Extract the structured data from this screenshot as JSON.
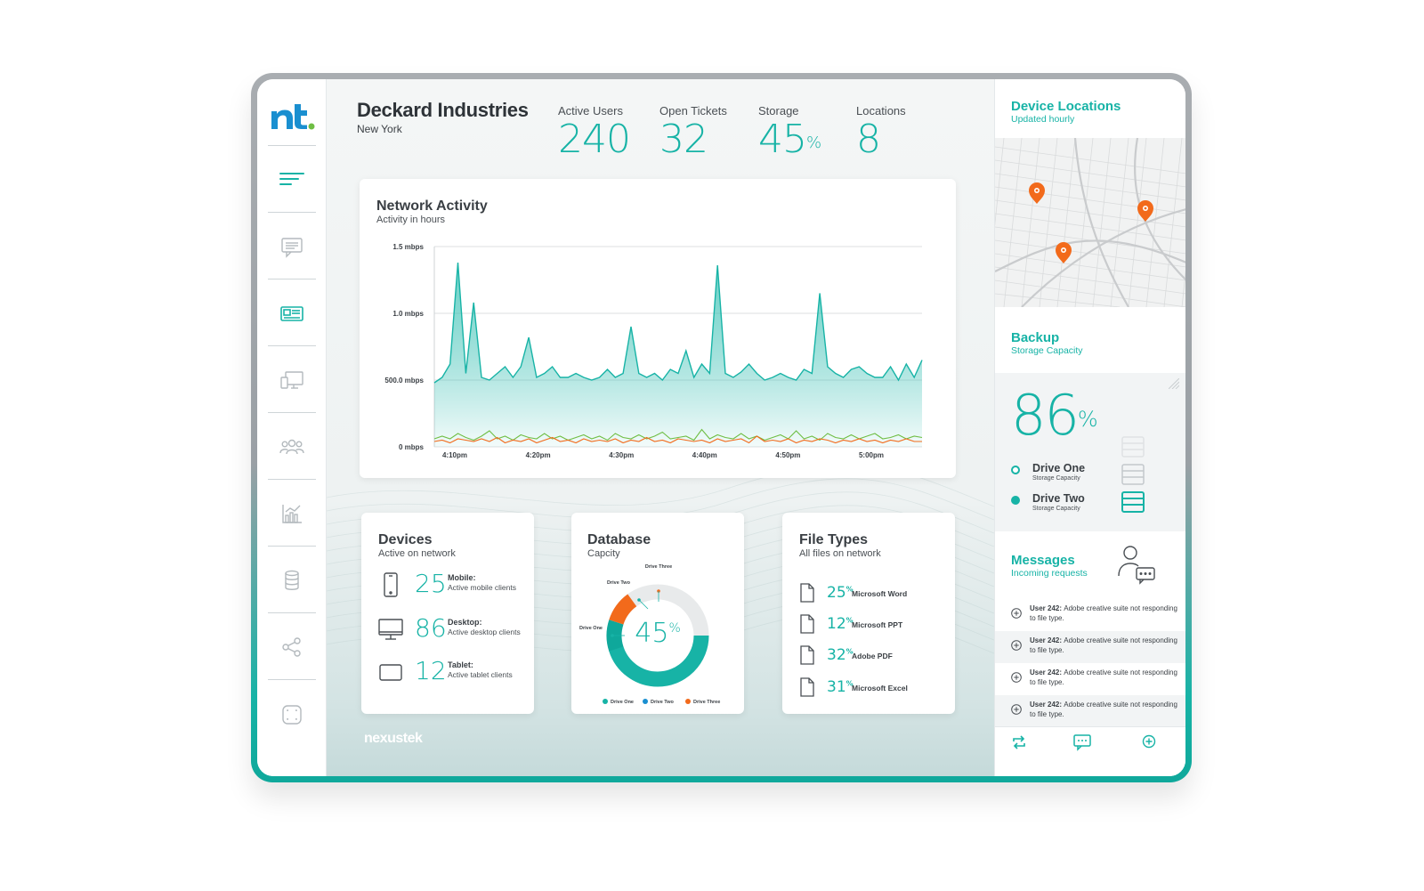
{
  "brand": {
    "logo_text": "nt.",
    "footer_brand": "nexustek"
  },
  "sidebar": {
    "items": [
      {
        "icon": "menu-icon"
      },
      {
        "icon": "chat-icon"
      },
      {
        "icon": "news-icon"
      },
      {
        "icon": "devices-icon"
      },
      {
        "icon": "users-icon"
      },
      {
        "icon": "chart-icon"
      },
      {
        "icon": "database-icon"
      },
      {
        "icon": "share-icon"
      },
      {
        "icon": "scan-icon"
      }
    ]
  },
  "header": {
    "company": "Deckard Industries",
    "city": "New York",
    "stats": [
      {
        "label": "Active Users",
        "value": "240",
        "suffix": ""
      },
      {
        "label": "Open Tickets",
        "value": "32",
        "suffix": ""
      },
      {
        "label": "Storage",
        "value": "45",
        "suffix": "%"
      },
      {
        "label": "Locations",
        "value": "8",
        "suffix": ""
      }
    ]
  },
  "network": {
    "title": "Network Activity",
    "subtitle": "Activity in hours"
  },
  "chart_data": {
    "type": "area",
    "title": "Network Activity",
    "subtitle": "Activity in hours",
    "xlabel": "",
    "ylabel": "",
    "y_ticks": [
      "0 mbps",
      "500.0 mbps",
      "1.0 mbps",
      "1.5 mbps"
    ],
    "ylim": [
      0,
      1.5
    ],
    "x_ticks": [
      "4:10pm",
      "4:20pm",
      "4:30pm",
      "4:40pm",
      "4:50pm",
      "5:00pm"
    ],
    "grid": true,
    "series": [
      {
        "color": "#17b3a6",
        "values": [
          0.48,
          0.52,
          0.62,
          1.38,
          0.55,
          1.08,
          0.52,
          0.5,
          0.55,
          0.6,
          0.52,
          0.6,
          0.82,
          0.52,
          0.55,
          0.6,
          0.52,
          0.52,
          0.55,
          0.52,
          0.5,
          0.52,
          0.58,
          0.52,
          0.55,
          0.9,
          0.55,
          0.52,
          0.55,
          0.5,
          0.58,
          0.55,
          0.72,
          0.52,
          0.62,
          0.55,
          1.36,
          0.55,
          0.52,
          0.56,
          0.62,
          0.55,
          0.5,
          0.52,
          0.55,
          0.52,
          0.5,
          0.58,
          0.55,
          1.15,
          0.6,
          0.55,
          0.52,
          0.58,
          0.6,
          0.55,
          0.52,
          0.52,
          0.6,
          0.5,
          0.62,
          0.52,
          0.65
        ]
      },
      {
        "color": "#6fbe44",
        "values": [
          0.06,
          0.08,
          0.06,
          0.1,
          0.07,
          0.05,
          0.08,
          0.12,
          0.06,
          0.08,
          0.05,
          0.09,
          0.07,
          0.06,
          0.1,
          0.06,
          0.08,
          0.05,
          0.07,
          0.09,
          0.06,
          0.08,
          0.05,
          0.1,
          0.07,
          0.06,
          0.09,
          0.06,
          0.08,
          0.11,
          0.06,
          0.07,
          0.08,
          0.05,
          0.13,
          0.06,
          0.09,
          0.07,
          0.06,
          0.1,
          0.06,
          0.08,
          0.05,
          0.07,
          0.09,
          0.06,
          0.12,
          0.06,
          0.08,
          0.05,
          0.1,
          0.07,
          0.06,
          0.09,
          0.06,
          0.08,
          0.1,
          0.06,
          0.07,
          0.09,
          0.06,
          0.08,
          0.07
        ]
      },
      {
        "color": "#f26a1b",
        "values": [
          0.04,
          0.05,
          0.03,
          0.06,
          0.05,
          0.04,
          0.06,
          0.04,
          0.07,
          0.03,
          0.05,
          0.04,
          0.06,
          0.03,
          0.05,
          0.07,
          0.04,
          0.05,
          0.03,
          0.06,
          0.04,
          0.05,
          0.04,
          0.06,
          0.03,
          0.05,
          0.04,
          0.07,
          0.04,
          0.05,
          0.03,
          0.06,
          0.05,
          0.04,
          0.05,
          0.03,
          0.06,
          0.04,
          0.05,
          0.06,
          0.03,
          0.08,
          0.04,
          0.05,
          0.04,
          0.06,
          0.03,
          0.05,
          0.04,
          0.06,
          0.05,
          0.03,
          0.05,
          0.04,
          0.06,
          0.04,
          0.05,
          0.03,
          0.05,
          0.04,
          0.06,
          0.04,
          0.04
        ]
      }
    ]
  },
  "devices": {
    "title": "Devices",
    "subtitle": "Active on network",
    "rows": [
      {
        "icon": "mobile-icon",
        "count": "25",
        "label": "Mobile:",
        "desc": "Active mobile clients"
      },
      {
        "icon": "desktop-icon",
        "count": "86",
        "label": "Desktop:",
        "desc": "Active desktop clients"
      },
      {
        "icon": "tablet-icon",
        "count": "12",
        "label": "Tablet:",
        "desc": "Active tablet clients"
      }
    ]
  },
  "database": {
    "title": "Database",
    "subtitle": "Capcity",
    "center_value": "45",
    "center_suffix": "%",
    "slices": [
      {
        "name": "Drive One",
        "value": 45,
        "color": "#17b3a6"
      },
      {
        "name": "Drive Two",
        "value": 10,
        "color": "#0fa89b"
      },
      {
        "name": "Drive Three",
        "value": 10,
        "color": "#f26a1b"
      }
    ],
    "remaining_color": "#e8eaeb",
    "callouts": [
      "Drive Three",
      "Drive Two",
      "Drive One"
    ],
    "legend": [
      {
        "name": "Drive One",
        "color": "#17b3a6"
      },
      {
        "name": "Drive Two",
        "color": "#1a8fd0"
      },
      {
        "name": "Drive Three",
        "color": "#f26a1b"
      }
    ]
  },
  "filetypes": {
    "title": "File Types",
    "subtitle": "All files on network",
    "rows": [
      {
        "value": "25",
        "suffix": "%",
        "label": "Microsoft Word"
      },
      {
        "value": "12",
        "suffix": "%",
        "label": "Microsoft PPT"
      },
      {
        "value": "32",
        "suffix": "%",
        "label": "Adobe PDF"
      },
      {
        "value": "31",
        "suffix": "%",
        "label": "Microsoft Excel"
      }
    ]
  },
  "locations": {
    "title": "Device Locations",
    "subtitle": "Updated hourly",
    "pins": 3,
    "pin_color": "#f26a1b"
  },
  "backup": {
    "title": "Backup",
    "subtitle": "Storage Capacity",
    "value": "86",
    "suffix": "%",
    "drives": [
      {
        "name": "Drive One",
        "sub": "Storage Capacity",
        "style": "outline"
      },
      {
        "name": "Drive Two",
        "sub": "Storage Capacity",
        "style": "filled"
      }
    ]
  },
  "messages": {
    "title": "Messages",
    "subtitle": "Incoming requests",
    "items": [
      {
        "user": "User 242:",
        "text": "Adobe creative suite not responding to file type."
      },
      {
        "user": "User 242:",
        "text": "Adobe creative suite not responding to file type."
      },
      {
        "user": "User 242:",
        "text": "Adobe creative suite not responding to file type."
      },
      {
        "user": "User 242:",
        "text": "Adobe creative suite not responding to file type."
      }
    ],
    "footer_icons": [
      "refresh-icon",
      "comment-icon",
      "add-icon"
    ]
  },
  "colors": {
    "accent": "#17b3a6",
    "orange": "#f26a1b",
    "green": "#6fbe44",
    "blue": "#1a8fd0"
  }
}
